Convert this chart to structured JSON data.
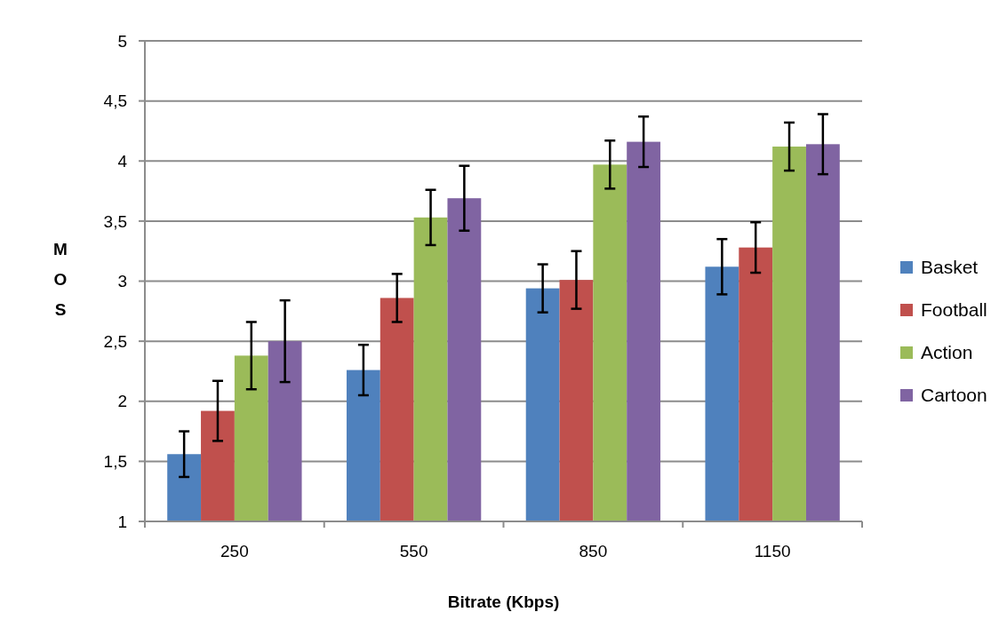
{
  "chart_data": {
    "type": "bar",
    "xlabel": "Bitrate (Kbps)",
    "ylabel": "MOS",
    "categories": [
      "250",
      "550",
      "850",
      "1150"
    ],
    "series": [
      {
        "name": "Basket",
        "color": "#4f81bd",
        "values": [
          1.56,
          2.26,
          2.94,
          3.12
        ],
        "errors": [
          0.19,
          0.21,
          0.2,
          0.23
        ]
      },
      {
        "name": "Football",
        "color": "#c0504d",
        "values": [
          1.92,
          2.86,
          3.01,
          3.28
        ],
        "errors": [
          0.25,
          0.2,
          0.24,
          0.21
        ]
      },
      {
        "name": "Action",
        "color": "#9bbb59",
        "values": [
          2.38,
          3.53,
          3.97,
          4.12
        ],
        "errors": [
          0.28,
          0.23,
          0.2,
          0.2
        ]
      },
      {
        "name": "Cartoon",
        "color": "#8064a2",
        "values": [
          2.5,
          3.69,
          4.16,
          4.14
        ],
        "errors": [
          0.34,
          0.27,
          0.21,
          0.25
        ]
      }
    ],
    "ylim": [
      1,
      5
    ],
    "yticks": [
      1,
      {
        "value": 1.5,
        "label": "1,5"
      },
      2,
      {
        "value": 2.5,
        "label": "2,5"
      },
      3,
      {
        "value": 3.5,
        "label": "3,5"
      },
      4,
      {
        "value": 4.5,
        "label": "4,5"
      },
      5
    ],
    "grid": "y",
    "legend": "right"
  }
}
